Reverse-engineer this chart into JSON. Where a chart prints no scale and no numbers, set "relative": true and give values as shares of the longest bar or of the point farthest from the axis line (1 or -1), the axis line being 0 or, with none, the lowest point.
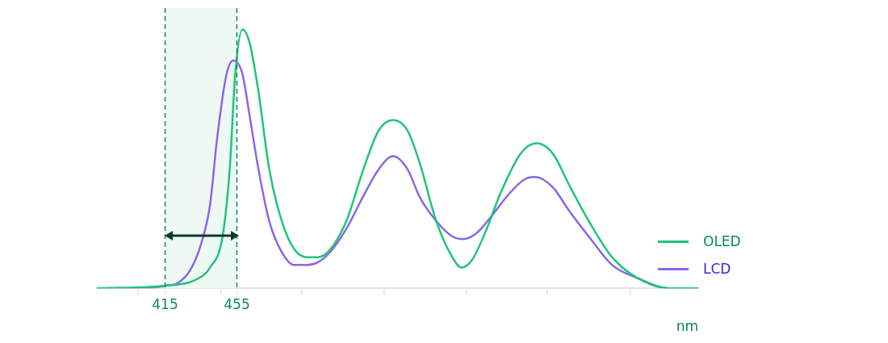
{
  "chart_data": {
    "type": "line",
    "relative": true,
    "xlabel": "nm",
    "xlim": [
      377,
      712
    ],
    "xticks": [
      {
        "value": 400,
        "label": null
      },
      415,
      {
        "value": 446,
        "label": null
      },
      455,
      {
        "value": 491,
        "label": null
      },
      {
        "value": 537,
        "label": null
      },
      {
        "value": 583,
        "label": null
      },
      {
        "value": 628,
        "label": null
      },
      {
        "value": 674,
        "label": null
      }
    ],
    "series": [
      {
        "name": "OLED",
        "color": "#1fc47a",
        "x": [
          377,
          415,
          431,
          440,
          447,
          451,
          454,
          458,
          462,
          467,
          473,
          480,
          487,
          494,
          500,
          507,
          516,
          525,
          534,
          542,
          550,
          557,
          566,
          575,
          580,
          586,
          593,
          602,
          613,
          622,
          631,
          640,
          651,
          664,
          678,
          696,
          712
        ],
        "values": [
          0,
          0.01,
          0.03,
          0.08,
          0.2,
          0.46,
          0.82,
          1,
          0.95,
          0.76,
          0.46,
          0.26,
          0.15,
          0.12,
          0.12,
          0.15,
          0.26,
          0.45,
          0.61,
          0.65,
          0.61,
          0.48,
          0.26,
          0.12,
          0.08,
          0.11,
          0.21,
          0.37,
          0.52,
          0.56,
          0.52,
          0.4,
          0.26,
          0.12,
          0.04,
          0,
          0
        ]
      },
      {
        "name": "LCD",
        "color": "#8b66e8",
        "x": [
          377,
          404,
          415,
          422,
          429,
          435,
          440,
          444,
          449,
          453,
          458,
          462,
          467,
          473,
          480,
          487,
          494,
          500,
          507,
          516,
          525,
          534,
          542,
          550,
          557,
          566,
          575,
          581,
          588,
          597,
          606,
          615,
          621,
          631,
          640,
          651,
          664,
          678,
          696,
          712
        ],
        "values": [
          0,
          0,
          0.01,
          0.02,
          0.07,
          0.17,
          0.32,
          0.58,
          0.82,
          0.88,
          0.83,
          0.67,
          0.46,
          0.26,
          0.14,
          0.09,
          0.09,
          0.1,
          0.14,
          0.23,
          0.35,
          0.46,
          0.51,
          0.46,
          0.35,
          0.26,
          0.2,
          0.19,
          0.21,
          0.28,
          0.36,
          0.42,
          0.43,
          0.39,
          0.3,
          0.2,
          0.09,
          0.04,
          0,
          0
        ]
      }
    ],
    "ref_lines": [
      {
        "axis": "x",
        "value": 415,
        "color": "#0a8a5a",
        "line_style": "dashed"
      },
      {
        "axis": "x",
        "value": 455,
        "color": "#0a8a5a",
        "line_style": "dashed"
      }
    ],
    "bands": [
      {
        "axis": "x",
        "from": 415,
        "to": 455,
        "color": "#eef9f3"
      }
    ],
    "legend": "right",
    "grid": false,
    "tick_labels": "x",
    "marker": "none",
    "line_style": "solid"
  }
}
